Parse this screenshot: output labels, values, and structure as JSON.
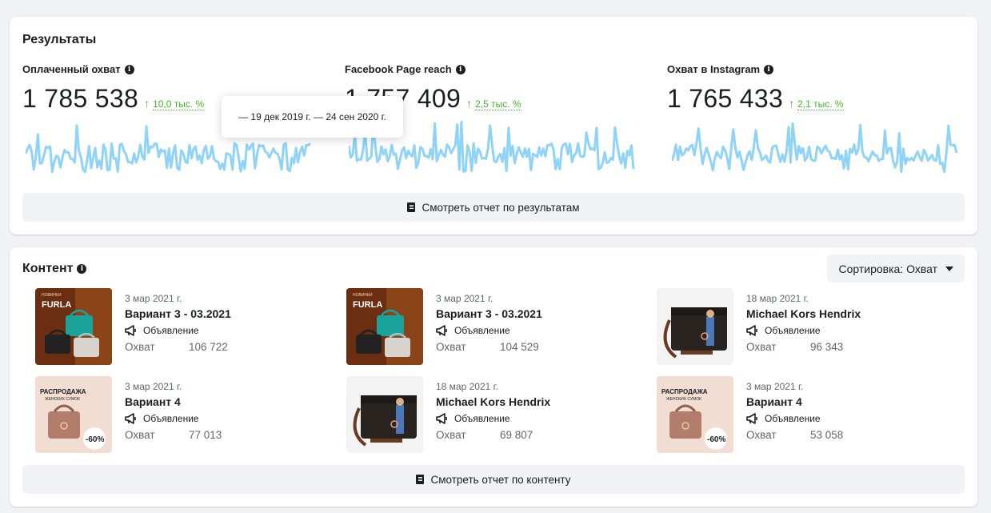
{
  "results": {
    "title": "Результаты",
    "metrics": [
      {
        "label": "Оплаченный охват",
        "value": "1 785 538",
        "delta": "10,0 тыс. %"
      },
      {
        "label": "Facebook Page reach",
        "value": "1 757 409",
        "delta": "2,5 тыс. %"
      },
      {
        "label": "Охват в Instagram",
        "value": "1 765 433",
        "delta": "2,1 тыс. %"
      }
    ],
    "tooltip": "— 19 дек 2019 г. — 24 сен 2020 г.",
    "report_button": "Смотреть отчет по результатам",
    "spark_color": "#8fd4f8",
    "delta_color": "#42b72a"
  },
  "content": {
    "title": "Контент",
    "sort_label": "Сортировка: Охват",
    "report_button": "Смотреть отчет по контенту",
    "items": [
      {
        "date": "3 мар 2021 г.",
        "title": "Вариант 3 - 03.2021",
        "type": "Объявление",
        "metric_label": "Охват",
        "metric_value": "106 722",
        "thumb": "furla"
      },
      {
        "date": "3 мар 2021 г.",
        "title": "Вариант 3 - 03.2021",
        "type": "Объявление",
        "metric_label": "Охват",
        "metric_value": "104 529",
        "thumb": "furla"
      },
      {
        "date": "18 мар 2021 г.",
        "title": "Michael Kors Hendrix",
        "type": "Объявление",
        "metric_label": "Охват",
        "metric_value": "96 343",
        "thumb": "mk"
      },
      {
        "date": "3 мар 2021 г.",
        "title": "Вариант 4",
        "type": "Объявление",
        "metric_label": "Охват",
        "metric_value": "77 013",
        "thumb": "sale"
      },
      {
        "date": "18 мар 2021 г.",
        "title": "Michael Kors Hendrix",
        "type": "Объявление",
        "metric_label": "Охват",
        "metric_value": "69 807",
        "thumb": "mk"
      },
      {
        "date": "3 мар 2021 г.",
        "title": "Вариант 4",
        "type": "Объявление",
        "metric_label": "Охват",
        "metric_value": "53 058",
        "thumb": "sale"
      }
    ],
    "thumb_text": {
      "furla_small": "НОВИНКИ",
      "furla_brand": "FURLA",
      "sale_title": "РАСПРОДАЖА",
      "sale_sub": "ЖЕНСКИХ СУМОК",
      "sale_badge": "-60%"
    }
  }
}
